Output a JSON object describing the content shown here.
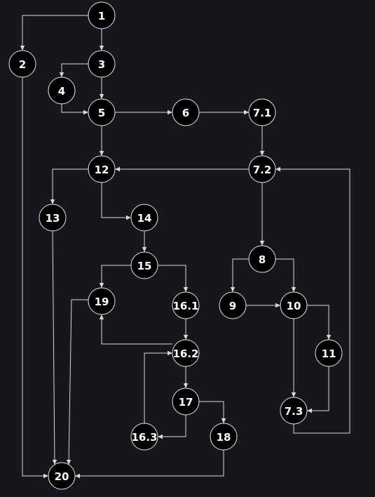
{
  "diagram": {
    "colors": {
      "background": "#18151c",
      "node_fill": "#000000",
      "node_stroke": "#e6e6e6",
      "edge": "#d9d9d9",
      "label": "#ffffff"
    },
    "nodes": [
      {
        "id": "n1",
        "label": "1"
      },
      {
        "id": "n2",
        "label": "2"
      },
      {
        "id": "n3",
        "label": "3"
      },
      {
        "id": "n4",
        "label": "4"
      },
      {
        "id": "n5",
        "label": "5"
      },
      {
        "id": "n6",
        "label": "6"
      },
      {
        "id": "n7_1",
        "label": "7.1"
      },
      {
        "id": "n12",
        "label": "12"
      },
      {
        "id": "n7_2",
        "label": "7.2"
      },
      {
        "id": "n13",
        "label": "13"
      },
      {
        "id": "n14",
        "label": "14"
      },
      {
        "id": "n8",
        "label": "8"
      },
      {
        "id": "n15",
        "label": "15"
      },
      {
        "id": "n19",
        "label": "19"
      },
      {
        "id": "n16_1",
        "label": "16.1"
      },
      {
        "id": "n9",
        "label": "9"
      },
      {
        "id": "n10",
        "label": "10"
      },
      {
        "id": "n16_2",
        "label": "16.2"
      },
      {
        "id": "n11",
        "label": "11"
      },
      {
        "id": "n17",
        "label": "17"
      },
      {
        "id": "n7_3",
        "label": "7.3"
      },
      {
        "id": "n16_3",
        "label": "16.3"
      },
      {
        "id": "n18",
        "label": "18"
      },
      {
        "id": "n20",
        "label": "20"
      }
    ],
    "edges": [
      {
        "from": "n1",
        "to": "n2"
      },
      {
        "from": "n1",
        "to": "n3"
      },
      {
        "from": "n3",
        "to": "n4"
      },
      {
        "from": "n3",
        "to": "n5"
      },
      {
        "from": "n4",
        "to": "n5"
      },
      {
        "from": "n2",
        "to": "n20"
      },
      {
        "from": "n5",
        "to": "n6"
      },
      {
        "from": "n6",
        "to": "n7_1"
      },
      {
        "from": "n5",
        "to": "n12"
      },
      {
        "from": "n7_1",
        "to": "n7_2"
      },
      {
        "from": "n7_2",
        "to": "n12"
      },
      {
        "from": "n12",
        "to": "n13"
      },
      {
        "from": "n12",
        "to": "n14"
      },
      {
        "from": "n13",
        "to": "n20"
      },
      {
        "from": "n14",
        "to": "n15"
      },
      {
        "from": "n7_2",
        "to": "n8"
      },
      {
        "from": "n15",
        "to": "n19"
      },
      {
        "from": "n15",
        "to": "n16_1"
      },
      {
        "from": "n8",
        "to": "n9"
      },
      {
        "from": "n8",
        "to": "n10"
      },
      {
        "from": "n9",
        "to": "n10"
      },
      {
        "from": "n19",
        "to": "n20"
      },
      {
        "from": "n16_1",
        "to": "n16_2"
      },
      {
        "from": "n16_2",
        "to": "n19"
      },
      {
        "from": "n10",
        "to": "n11"
      },
      {
        "from": "n10",
        "to": "n7_3"
      },
      {
        "from": "n16_2",
        "to": "n17"
      },
      {
        "from": "n16_3",
        "to": "n16_2"
      },
      {
        "from": "n11",
        "to": "n7_3"
      },
      {
        "from": "n17",
        "to": "n16_3"
      },
      {
        "from": "n17",
        "to": "n18"
      },
      {
        "from": "n7_3",
        "to": "n7_2"
      },
      {
        "from": "n18",
        "to": "n20"
      }
    ]
  }
}
